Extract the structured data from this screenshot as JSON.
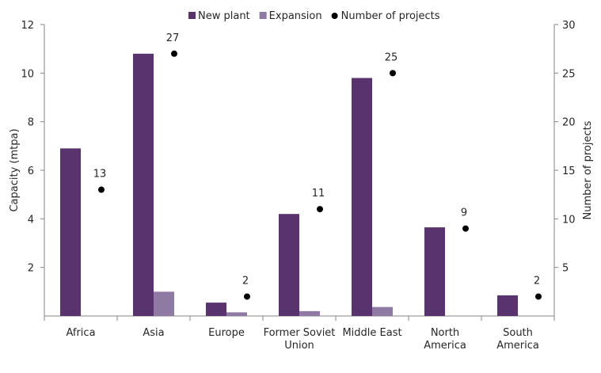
{
  "chart_data": {
    "type": "bar",
    "categories": [
      [
        "Africa"
      ],
      [
        "Asia"
      ],
      [
        "Europe"
      ],
      [
        "Former Soviet",
        "Union"
      ],
      [
        "Middle East"
      ],
      [
        "North",
        "America"
      ],
      [
        "South",
        "America"
      ]
    ],
    "series": [
      {
        "name": "New plant",
        "type": "bar",
        "axis": "left",
        "color": "#59336e",
        "values": [
          6.9,
          10.8,
          0.55,
          4.2,
          9.8,
          3.65,
          0.85
        ]
      },
      {
        "name": "Expansion",
        "type": "bar",
        "axis": "left",
        "color": "#8e7aa3",
        "values": [
          0,
          1.0,
          0.15,
          0.2,
          0.37,
          0,
          0
        ]
      },
      {
        "name": "Number of projects",
        "type": "scatter",
        "axis": "right",
        "color": "#000000",
        "values": [
          13,
          27,
          2,
          11,
          25,
          9,
          2
        ]
      }
    ],
    "ylabel": "Capacity (mtpa)",
    "y2label": "Number of projects",
    "ylim": [
      0,
      12
    ],
    "y2lim": [
      0,
      30
    ],
    "yticks": [
      2,
      4,
      6,
      8,
      10,
      12
    ],
    "y2ticks": [
      5,
      10,
      15,
      20,
      25,
      30
    ],
    "legend": "top",
    "grid": false
  }
}
